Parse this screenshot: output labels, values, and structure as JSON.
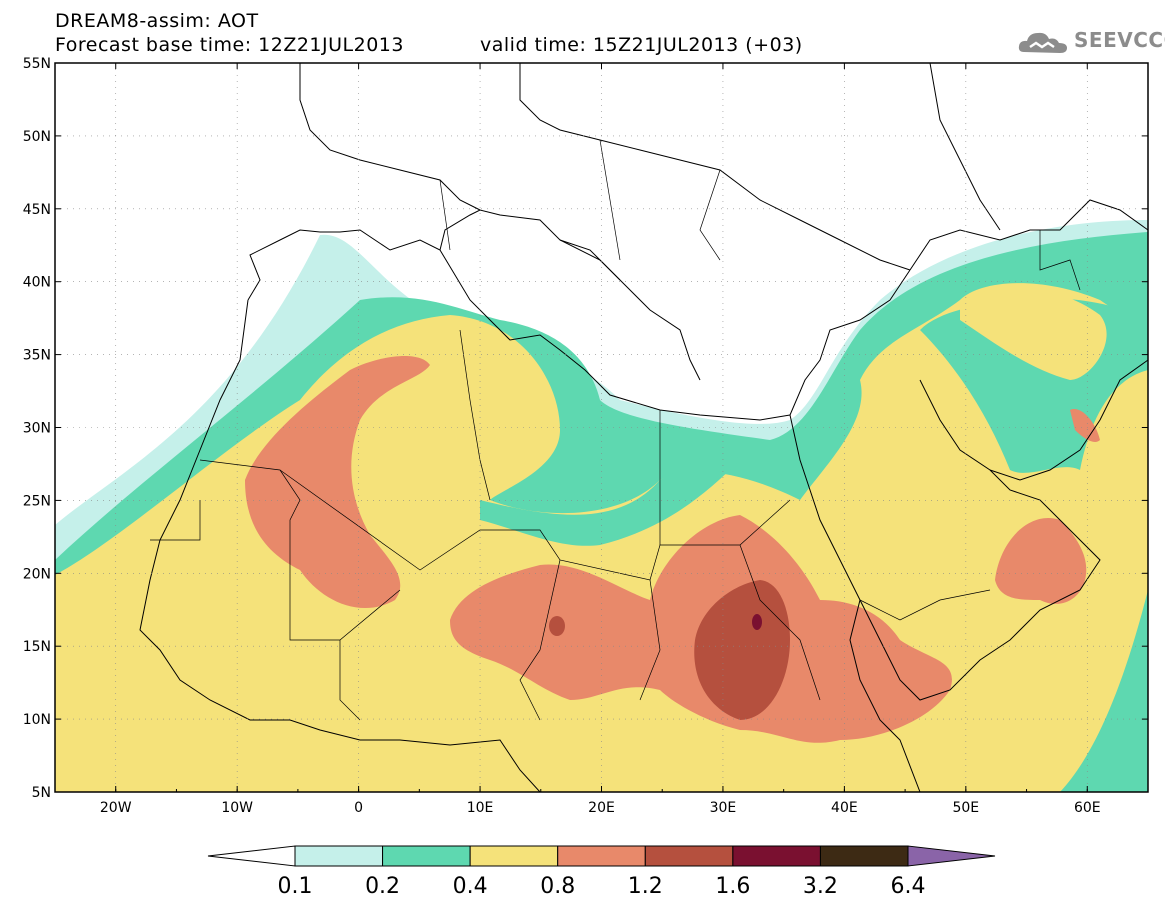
{
  "header": {
    "line1": "DREAM8-assim: AOT",
    "line2": "Forecast base time: 12Z21JUL2013",
    "line2b": "valid time: 15Z21JUL2013 (+03)",
    "logo_text": "SEEVCCC",
    "logo_icon": "cloud-icon"
  },
  "map": {
    "lon_range": [
      -25,
      65
    ],
    "lat_range": [
      5,
      55
    ],
    "lat_ticks": [
      "55N",
      "50N",
      "45N",
      "40N",
      "35N",
      "30N",
      "25N",
      "20N",
      "15N",
      "10N",
      "5N"
    ],
    "lon_ticks": [
      "20W",
      "10W",
      "0",
      "10E",
      "20E",
      "30E",
      "40E",
      "50E",
      "60E"
    ]
  },
  "legend": {
    "colors": [
      "#ffffff",
      "#c5f0ea",
      "#5ed8b0",
      "#f5e27a",
      "#e8896a",
      "#b5503e",
      "#7a1030",
      "#3d2a14",
      "#8a64a8"
    ],
    "labels": [
      "0.1",
      "0.2",
      "0.4",
      "0.8",
      "1.2",
      "1.6",
      "3.2",
      "6.4"
    ]
  }
}
